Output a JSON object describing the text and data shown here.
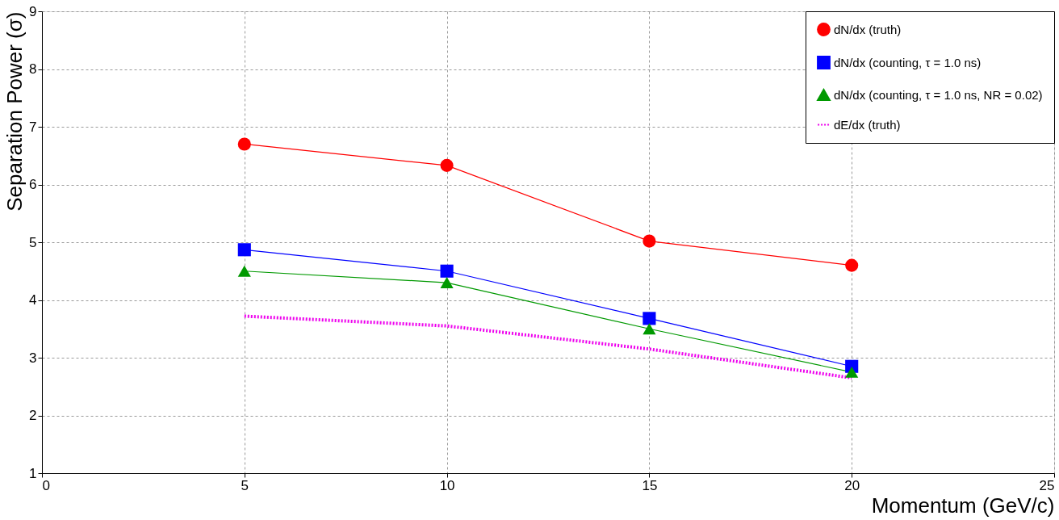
{
  "chart_data": {
    "type": "line",
    "xlabel": "Momentum (GeV/c)",
    "ylabel": "Separation Power (σ)",
    "xlim": [
      0,
      25
    ],
    "xticks": [
      0,
      5,
      10,
      15,
      20,
      25
    ],
    "ylim": [
      1,
      9
    ],
    "yticks": [
      1,
      2,
      3,
      4,
      5,
      6,
      7,
      8,
      9
    ],
    "grid": true,
    "legend": "top right",
    "series": [
      {
        "name": "dN/dx (truth)",
        "color": "#ff0000",
        "marker": "circle",
        "line_style": "solid",
        "x": [
          5,
          10,
          15,
          20
        ],
        "values": [
          6.7,
          6.33,
          5.02,
          4.6
        ]
      },
      {
        "name": "dN/dx (counting, τ = 1.0 ns)",
        "color": "#0000ff",
        "marker": "square",
        "line_style": "solid",
        "x": [
          5,
          10,
          15,
          20
        ],
        "values": [
          4.87,
          4.5,
          3.68,
          2.85
        ]
      },
      {
        "name": "dN/dx (counting, τ = 1.0 ns, NR = 0.02)",
        "color": "#009900",
        "marker": "triangle",
        "line_style": "solid",
        "x": [
          5,
          10,
          15,
          20
        ],
        "values": [
          4.5,
          4.3,
          3.5,
          2.75
        ]
      },
      {
        "name": "dE/dx (truth)",
        "color": "#ee00ee",
        "marker": "none",
        "line_style": "dotted",
        "x": [
          5,
          10,
          15,
          20
        ],
        "values": [
          3.72,
          3.55,
          3.15,
          2.65
        ]
      }
    ]
  }
}
